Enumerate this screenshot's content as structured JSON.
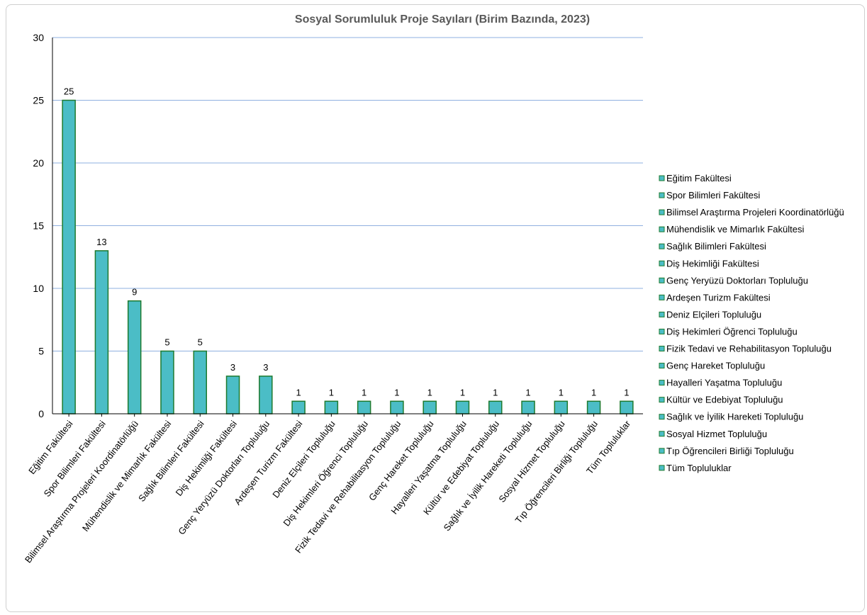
{
  "chart_data": {
    "type": "bar",
    "title": "Sosyal Sorumluluk Proje Sayıları (Birim Bazında, 2023)",
    "xlabel": "",
    "ylabel": "",
    "ylim": [
      0,
      30
    ],
    "yticks": [
      "0",
      "5",
      "10",
      "15",
      "20",
      "25",
      "30"
    ],
    "grid": true,
    "legend_position": "right",
    "bar_color": "#4bbdc6",
    "bar_edge_color": "#1e7a2e",
    "grid_color": "#8fb0e0",
    "categories": [
      "Eğitim Fakültesi",
      "Spor Bilimleri Fakültesi",
      "Bilimsel Araştırma Projeleri Koordinatörlüğü",
      "Mühendislik ve Mimarlık Fakültesi",
      "Sağlık Bilimleri Fakültesi",
      "Diş Hekimliği Fakültesi",
      "Genç Yeryüzü Doktorları Topluluğu",
      "Ardeşen Turizm Fakültesi",
      "Deniz Elçileri Topluluğu",
      "Diş Hekimleri Öğrenci Topluluğu",
      "Fizik Tedavi ve Rehabilitasyon Topluluğu",
      "Genç Hareket Topluluğu",
      "Hayalleri Yaşatma Topluluğu",
      "Kültür ve Edebiyat Topluluğu",
      "Sağlık ve İyilik Hareketi Topluluğu",
      "Sosyal Hizmet Topluluğu",
      "Tıp Öğrencileri Birliği Topluluğu",
      "Tüm Topluluklar"
    ],
    "values": [
      25,
      13,
      9,
      5,
      5,
      3,
      3,
      1,
      1,
      1,
      1,
      1,
      1,
      1,
      1,
      1,
      1,
      1
    ]
  }
}
